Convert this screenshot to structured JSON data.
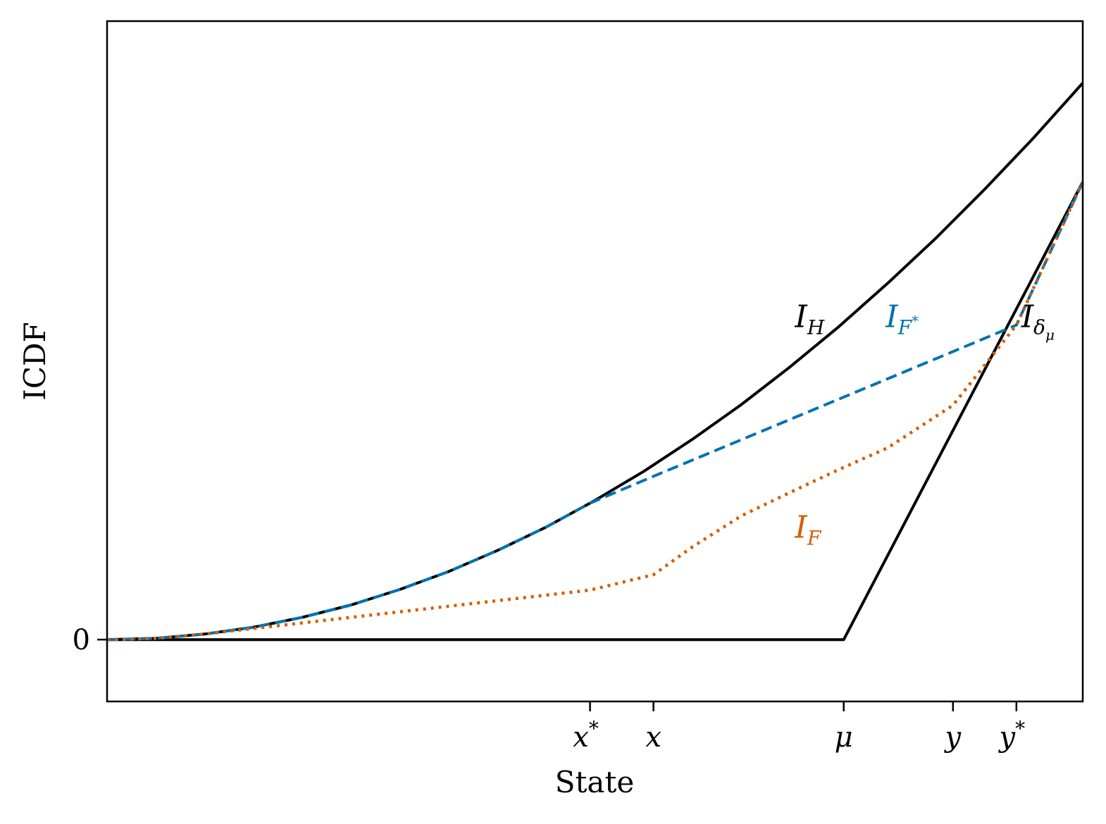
{
  "chart_data": {
    "type": "line",
    "xlabel": "State",
    "ylabel": "ICDF",
    "xlim": [
      0,
      1
    ],
    "ylim": [
      -0.1,
      1.0
    ],
    "grid": false,
    "xticks": [
      {
        "value": 0.495,
        "label": "x",
        "sup": "*"
      },
      {
        "value": 0.56,
        "label": "x",
        "sup": ""
      },
      {
        "value": 0.755,
        "label": "μ",
        "sup": ""
      },
      {
        "value": 0.867,
        "label": "y",
        "sup": ""
      },
      {
        "value": 0.932,
        "label": "y",
        "sup": "*"
      }
    ],
    "yticks": [
      {
        "value": 0,
        "label": "0"
      }
    ],
    "series": [
      {
        "name": "I_H",
        "label_main": "I",
        "label_sub": "H",
        "label_subsub": "",
        "color": "#000000",
        "style": "solid",
        "x": [
          0,
          0.05,
          0.1,
          0.15,
          0.2,
          0.25,
          0.3,
          0.35,
          0.4,
          0.45,
          0.5,
          0.55,
          0.6,
          0.65,
          0.7,
          0.75,
          0.8,
          0.85,
          0.9,
          0.95,
          1.0
        ],
        "y": [
          0,
          0.002,
          0.009,
          0.02,
          0.036,
          0.056,
          0.081,
          0.11,
          0.144,
          0.182,
          0.225,
          0.272,
          0.324,
          0.38,
          0.441,
          0.506,
          0.576,
          0.65,
          0.729,
          0.812,
          0.9
        ]
      },
      {
        "name": "I_δμ",
        "label_main": "I",
        "label_sub": "δ",
        "label_subsub": "μ",
        "color": "#000000",
        "style": "solid",
        "x": [
          0,
          0.755,
          1.0
        ],
        "y": [
          0,
          0,
          0.74
        ]
      },
      {
        "name": "I_F*",
        "label_main": "I",
        "label_sub": "F",
        "label_subsub": "*",
        "color": "#0072B2",
        "style": "dashed",
        "x": [
          0,
          0.05,
          0.1,
          0.15,
          0.2,
          0.25,
          0.3,
          0.35,
          0.4,
          0.45,
          0.495,
          0.56,
          0.65,
          0.75,
          0.85,
          0.932,
          1.0
        ],
        "y": [
          0,
          0.002,
          0.009,
          0.02,
          0.036,
          0.056,
          0.081,
          0.11,
          0.144,
          0.182,
          0.2205,
          0.264,
          0.3232,
          0.3889,
          0.4546,
          0.5085,
          0.74
        ]
      },
      {
        "name": "I_F",
        "label_main": "I",
        "label_sub": "F",
        "label_subsub": "",
        "color": "#D55E00",
        "style": "dotted",
        "x": [
          0,
          0.05,
          0.1,
          0.15,
          0.2,
          0.25,
          0.3,
          0.35,
          0.4,
          0.45,
          0.495,
          0.56,
          0.6,
          0.65,
          0.7,
          0.75,
          0.8,
          0.867,
          0.932,
          1.0
        ],
        "y": [
          0,
          0.002,
          0.009,
          0.018,
          0.027,
          0.036,
          0.045,
          0.054,
          0.063,
          0.072,
          0.08,
          0.105,
          0.15,
          0.2,
          0.238,
          0.275,
          0.31,
          0.379,
          0.5085,
          0.74
        ]
      }
    ],
    "annotations": [
      {
        "series": "I_H",
        "x": 0.705,
        "y": 0.505
      },
      {
        "series": "I_F*",
        "x": 0.798,
        "y": 0.505
      },
      {
        "series": "I_δμ",
        "x": 0.937,
        "y": 0.505
      },
      {
        "series": "I_F",
        "x": 0.705,
        "y": 0.165
      }
    ]
  }
}
